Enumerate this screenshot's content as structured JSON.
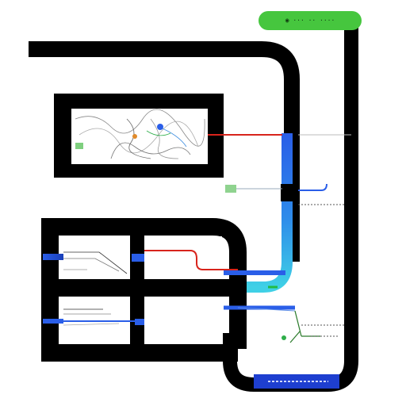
{
  "badge": {
    "label": "◉ ··· ·· ····"
  },
  "colors": {
    "frame": "#000000",
    "accent_green": "#46c63e",
    "accent_blue": "#2a5ee8",
    "accent_cyan": "#3fd0e6",
    "accent_red": "#d8241c",
    "background": "#ffffff"
  },
  "panels": [
    {
      "name": "map-panel",
      "content": "tangled-map"
    },
    {
      "name": "grid-cell-top-left",
      "content": "wiring"
    },
    {
      "name": "grid-cell-top-right",
      "content": "blank"
    },
    {
      "name": "grid-cell-bottom-left",
      "content": "wiring"
    },
    {
      "name": "grid-cell-bottom-right",
      "content": "blank"
    }
  ],
  "icons": [
    "tree-icon",
    "dot-icon",
    "chip-icon"
  ]
}
